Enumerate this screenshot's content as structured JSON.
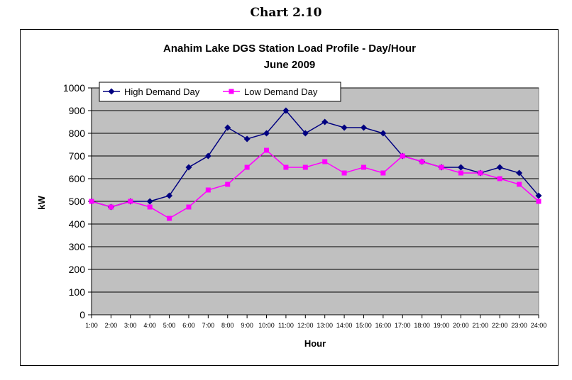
{
  "caption": "Chart 2.10",
  "chart_data": {
    "type": "line",
    "title_line1": "Anahim Lake DGS Station Load Profile - Day/Hour",
    "title_line2": "June 2009",
    "xlabel": "Hour",
    "ylabel": "kW",
    "ylim": [
      0,
      1000
    ],
    "y_ticks": [
      0,
      100,
      200,
      300,
      400,
      500,
      600,
      700,
      800,
      900,
      1000
    ],
    "grid": true,
    "legend_position": "top-left",
    "categories": [
      "1:00",
      "2:00",
      "3:00",
      "4:00",
      "5:00",
      "6:00",
      "7:00",
      "8:00",
      "9:00",
      "10:00",
      "11:00",
      "12:00",
      "13:00",
      "14:00",
      "15:00",
      "16:00",
      "17:00",
      "18:00",
      "19:00",
      "20:00",
      "21:00",
      "22:00",
      "23:00",
      "24:00"
    ],
    "series": [
      {
        "name": "High Demand Day",
        "color": "#000080",
        "marker": "diamond",
        "values": [
          500,
          475,
          500,
          500,
          525,
          650,
          700,
          825,
          775,
          800,
          900,
          800,
          850,
          825,
          825,
          800,
          700,
          675,
          650,
          650,
          625,
          650,
          625,
          525
        ]
      },
      {
        "name": "Low  Demand Day",
        "color": "#ff00ff",
        "marker": "square",
        "values": [
          500,
          475,
          500,
          475,
          425,
          475,
          550,
          575,
          650,
          725,
          650,
          650,
          675,
          625,
          650,
          625,
          700,
          675,
          650,
          625,
          625,
          600,
          575,
          500
        ]
      }
    ],
    "plot_background": "#c0c0c0"
  }
}
